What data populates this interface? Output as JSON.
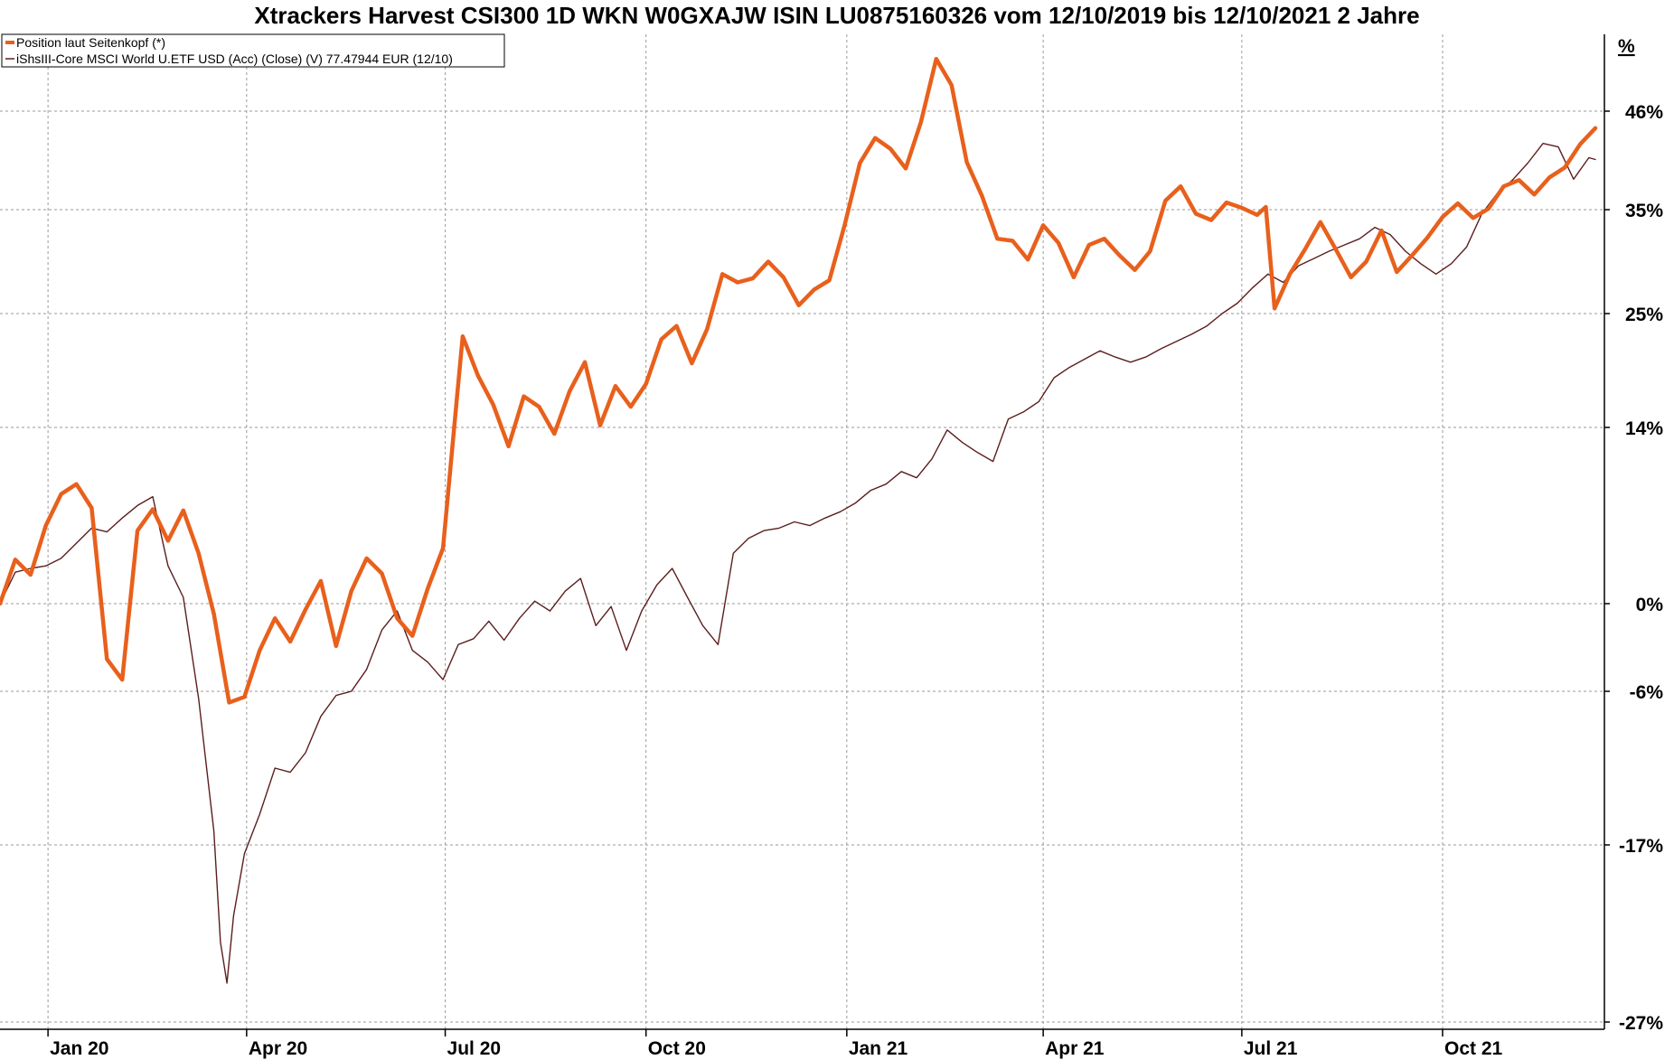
{
  "chart_data": {
    "type": "line",
    "title": "Xtrackers Harvest CSI300 1D WKN W0GXAJW ISIN LU0875160326 vom 12/10/2019 bis 12/10/2021 2 Jahre",
    "xlabel": "",
    "ylabel": "",
    "unit_label": "%",
    "y_ticks": [
      {
        "value": 46,
        "label": "46%"
      },
      {
        "value": 35,
        "label": "35%"
      },
      {
        "value": 25,
        "label": "25%"
      },
      {
        "value": 14,
        "label": "14%"
      },
      {
        "value": 0,
        "label": "0%"
      },
      {
        "value": -6,
        "label": "-6%"
      },
      {
        "value": -17,
        "label": "-17%"
      },
      {
        "value": -27,
        "label": "-27%"
      }
    ],
    "x_ticks": [
      {
        "date": "2020-01-01",
        "label": "Jan 20"
      },
      {
        "date": "2020-04-01",
        "label": "Apr 20"
      },
      {
        "date": "2020-07-01",
        "label": "Jul 20"
      },
      {
        "date": "2020-10-01",
        "label": "Oct 20"
      },
      {
        "date": "2021-01-01",
        "label": "Jan 21"
      },
      {
        "date": "2021-04-01",
        "label": "Apr 21"
      },
      {
        "date": "2021-07-01",
        "label": "Jul 21"
      },
      {
        "date": "2021-10-01",
        "label": "Oct 21"
      }
    ],
    "x_range": [
      "2019-12-10",
      "2021-12-10"
    ],
    "y_range_plotted": [
      -27,
      56
    ],
    "grid": true,
    "legend_position": "top-left",
    "series": [
      {
        "name": "Position laut Seitenkopf (*)",
        "color": "#e8601c",
        "points": [
          [
            "2019-12-10",
            0.0
          ],
          [
            "2019-12-17",
            3.5
          ],
          [
            "2019-12-24",
            2.3
          ],
          [
            "2019-12-31",
            6.2
          ],
          [
            "2020-01-07",
            8.7
          ],
          [
            "2020-01-14",
            9.5
          ],
          [
            "2020-01-21",
            7.6
          ],
          [
            "2020-01-28",
            -3.8
          ],
          [
            "2020-02-04",
            -5.2
          ],
          [
            "2020-02-11",
            5.8
          ],
          [
            "2020-02-18",
            7.5
          ],
          [
            "2020-02-25",
            5.0
          ],
          [
            "2020-03-03",
            7.4
          ],
          [
            "2020-03-10",
            4.0
          ],
          [
            "2020-03-17",
            -0.7
          ],
          [
            "2020-03-24",
            -6.8
          ],
          [
            "2020-03-31",
            -6.4
          ],
          [
            "2020-04-07",
            -3.2
          ],
          [
            "2020-04-14",
            -1.0
          ],
          [
            "2020-04-21",
            -2.6
          ],
          [
            "2020-04-28",
            -0.4
          ],
          [
            "2020-05-05",
            1.8
          ],
          [
            "2020-05-12",
            -2.9
          ],
          [
            "2020-05-19",
            1.0
          ],
          [
            "2020-05-26",
            3.6
          ],
          [
            "2020-06-02",
            2.4
          ],
          [
            "2020-06-09",
            -1.0
          ],
          [
            "2020-06-16",
            -2.2
          ],
          [
            "2020-06-23",
            1.2
          ],
          [
            "2020-06-30",
            4.4
          ],
          [
            "2020-07-06",
            16.0
          ],
          [
            "2020-07-09",
            22.8
          ],
          [
            "2020-07-16",
            19.0
          ],
          [
            "2020-07-23",
            16.2
          ],
          [
            "2020-07-30",
            12.5
          ],
          [
            "2020-08-06",
            17.0
          ],
          [
            "2020-08-13",
            16.0
          ],
          [
            "2020-08-20",
            13.5
          ],
          [
            "2020-08-27",
            17.5
          ],
          [
            "2020-09-03",
            20.3
          ],
          [
            "2020-09-10",
            14.2
          ],
          [
            "2020-09-17",
            18.0
          ],
          [
            "2020-09-24",
            16.0
          ],
          [
            "2020-10-01",
            18.2
          ],
          [
            "2020-10-08",
            22.5
          ],
          [
            "2020-10-15",
            23.8
          ],
          [
            "2020-10-22",
            20.2
          ],
          [
            "2020-10-29",
            23.5
          ],
          [
            "2020-11-05",
            28.8
          ],
          [
            "2020-11-12",
            28.0
          ],
          [
            "2020-11-19",
            28.4
          ],
          [
            "2020-11-26",
            30.0
          ],
          [
            "2020-12-03",
            28.5
          ],
          [
            "2020-12-10",
            25.8
          ],
          [
            "2020-12-17",
            27.3
          ],
          [
            "2020-12-24",
            28.2
          ],
          [
            "2020-12-31",
            33.5
          ],
          [
            "2021-01-07",
            40.2
          ],
          [
            "2021-01-14",
            43.0
          ],
          [
            "2021-01-21",
            41.8
          ],
          [
            "2021-01-28",
            39.6
          ],
          [
            "2021-02-04",
            44.8
          ],
          [
            "2021-02-11",
            52.8
          ],
          [
            "2021-02-18",
            49.4
          ],
          [
            "2021-02-25",
            40.3
          ],
          [
            "2021-03-04",
            36.5
          ],
          [
            "2021-03-11",
            32.2
          ],
          [
            "2021-03-18",
            32.0
          ],
          [
            "2021-03-25",
            30.2
          ],
          [
            "2021-04-01",
            33.5
          ],
          [
            "2021-04-08",
            31.8
          ],
          [
            "2021-04-15",
            28.5
          ],
          [
            "2021-04-22",
            31.6
          ],
          [
            "2021-04-29",
            32.2
          ],
          [
            "2021-05-06",
            30.6
          ],
          [
            "2021-05-13",
            29.2
          ],
          [
            "2021-05-20",
            31.0
          ],
          [
            "2021-05-27",
            36.0
          ],
          [
            "2021-06-03",
            37.6
          ],
          [
            "2021-06-10",
            34.6
          ],
          [
            "2021-06-17",
            34.0
          ],
          [
            "2021-06-24",
            35.8
          ],
          [
            "2021-07-01",
            35.2
          ],
          [
            "2021-07-08",
            34.5
          ],
          [
            "2021-07-12",
            35.3
          ],
          [
            "2021-07-16",
            25.5
          ],
          [
            "2021-07-23",
            28.8
          ],
          [
            "2021-07-30",
            31.2
          ],
          [
            "2021-08-06",
            33.8
          ],
          [
            "2021-08-13",
            31.2
          ],
          [
            "2021-08-20",
            28.5
          ],
          [
            "2021-08-27",
            30.0
          ],
          [
            "2021-09-03",
            33.0
          ],
          [
            "2021-09-10",
            29.0
          ],
          [
            "2021-09-17",
            30.6
          ],
          [
            "2021-09-24",
            32.3
          ],
          [
            "2021-10-01",
            34.3
          ],
          [
            "2021-10-08",
            35.7
          ],
          [
            "2021-10-15",
            34.2
          ],
          [
            "2021-10-22",
            35.1
          ],
          [
            "2021-10-29",
            37.6
          ],
          [
            "2021-11-05",
            38.3
          ],
          [
            "2021-11-12",
            36.7
          ],
          [
            "2021-11-19",
            38.6
          ],
          [
            "2021-11-26",
            39.7
          ],
          [
            "2021-12-03",
            42.3
          ],
          [
            "2021-12-10",
            44.1
          ]
        ]
      },
      {
        "name": "iShsIII-Core MSCI World U.ETF USD (Acc) (Close) (V) 77.47944 EUR (12/10)",
        "color": "#5c1e1e",
        "points": [
          [
            "2019-12-10",
            0.0
          ],
          [
            "2019-12-17",
            2.5
          ],
          [
            "2019-12-24",
            2.8
          ],
          [
            "2019-12-31",
            3.0
          ],
          [
            "2020-01-07",
            3.6
          ],
          [
            "2020-01-14",
            4.8
          ],
          [
            "2020-01-21",
            6.0
          ],
          [
            "2020-01-28",
            5.7
          ],
          [
            "2020-02-04",
            6.8
          ],
          [
            "2020-02-11",
            7.8
          ],
          [
            "2020-02-18",
            8.5
          ],
          [
            "2020-02-25",
            3.0
          ],
          [
            "2020-03-03",
            0.5
          ],
          [
            "2020-03-10",
            -6.5
          ],
          [
            "2020-03-17",
            -16.0
          ],
          [
            "2020-03-20",
            -22.5
          ],
          [
            "2020-03-23",
            -24.8
          ],
          [
            "2020-03-26",
            -21.0
          ],
          [
            "2020-03-31",
            -17.5
          ],
          [
            "2020-04-07",
            -14.8
          ],
          [
            "2020-04-14",
            -11.5
          ],
          [
            "2020-04-21",
            -11.8
          ],
          [
            "2020-04-28",
            -10.4
          ],
          [
            "2020-05-05",
            -7.8
          ],
          [
            "2020-05-12",
            -6.3
          ],
          [
            "2020-05-19",
            -6.0
          ],
          [
            "2020-05-26",
            -4.5
          ],
          [
            "2020-06-02",
            -1.8
          ],
          [
            "2020-06-09",
            -0.5
          ],
          [
            "2020-06-16",
            -3.2
          ],
          [
            "2020-06-23",
            -4.0
          ],
          [
            "2020-06-30",
            -5.2
          ],
          [
            "2020-07-07",
            -2.8
          ],
          [
            "2020-07-14",
            -2.4
          ],
          [
            "2020-07-21",
            -1.2
          ],
          [
            "2020-07-28",
            -2.5
          ],
          [
            "2020-08-04",
            -1.0
          ],
          [
            "2020-08-11",
            0.2
          ],
          [
            "2020-08-18",
            -0.5
          ],
          [
            "2020-08-25",
            1.0
          ],
          [
            "2020-09-01",
            2.0
          ],
          [
            "2020-09-08",
            -1.5
          ],
          [
            "2020-09-15",
            -0.2
          ],
          [
            "2020-09-22",
            -3.2
          ],
          [
            "2020-09-29",
            -0.5
          ],
          [
            "2020-10-06",
            1.5
          ],
          [
            "2020-10-13",
            2.8
          ],
          [
            "2020-10-20",
            0.5
          ],
          [
            "2020-10-27",
            -1.5
          ],
          [
            "2020-11-03",
            -2.8
          ],
          [
            "2020-11-10",
            4.0
          ],
          [
            "2020-11-17",
            5.2
          ],
          [
            "2020-11-24",
            5.8
          ],
          [
            "2020-12-01",
            6.0
          ],
          [
            "2020-12-08",
            6.5
          ],
          [
            "2020-12-15",
            6.2
          ],
          [
            "2020-12-22",
            6.8
          ],
          [
            "2020-12-29",
            7.3
          ],
          [
            "2021-01-05",
            8.0
          ],
          [
            "2021-01-12",
            9.0
          ],
          [
            "2021-01-19",
            9.5
          ],
          [
            "2021-01-26",
            10.5
          ],
          [
            "2021-02-02",
            10.0
          ],
          [
            "2021-02-09",
            11.5
          ],
          [
            "2021-02-16",
            13.8
          ],
          [
            "2021-02-23",
            12.8
          ],
          [
            "2021-03-02",
            12.0
          ],
          [
            "2021-03-09",
            11.3
          ],
          [
            "2021-03-16",
            14.8
          ],
          [
            "2021-03-23",
            15.5
          ],
          [
            "2021-03-30",
            16.5
          ],
          [
            "2021-04-06",
            18.8
          ],
          [
            "2021-04-13",
            19.8
          ],
          [
            "2021-04-20",
            20.6
          ],
          [
            "2021-04-27",
            21.4
          ],
          [
            "2021-05-04",
            20.8
          ],
          [
            "2021-05-11",
            20.3
          ],
          [
            "2021-05-18",
            20.8
          ],
          [
            "2021-05-25",
            21.6
          ],
          [
            "2021-06-01",
            22.3
          ],
          [
            "2021-06-08",
            23.0
          ],
          [
            "2021-06-15",
            23.8
          ],
          [
            "2021-06-22",
            25.0
          ],
          [
            "2021-06-29",
            26.0
          ],
          [
            "2021-07-06",
            27.5
          ],
          [
            "2021-07-13",
            28.8
          ],
          [
            "2021-07-20",
            28.0
          ],
          [
            "2021-07-27",
            29.6
          ],
          [
            "2021-08-03",
            30.3
          ],
          [
            "2021-08-10",
            31.0
          ],
          [
            "2021-08-17",
            31.6
          ],
          [
            "2021-08-24",
            32.2
          ],
          [
            "2021-08-31",
            33.3
          ],
          [
            "2021-09-07",
            32.6
          ],
          [
            "2021-09-14",
            31.0
          ],
          [
            "2021-09-21",
            29.8
          ],
          [
            "2021-09-28",
            28.8
          ],
          [
            "2021-10-05",
            29.8
          ],
          [
            "2021-10-12",
            31.4
          ],
          [
            "2021-10-19",
            34.6
          ],
          [
            "2021-10-26",
            36.8
          ],
          [
            "2021-11-02",
            38.3
          ],
          [
            "2021-11-09",
            40.2
          ],
          [
            "2021-11-16",
            42.4
          ],
          [
            "2021-11-23",
            42.0
          ],
          [
            "2021-11-30",
            38.4
          ],
          [
            "2021-12-07",
            40.8
          ],
          [
            "2021-12-10",
            40.6
          ]
        ]
      }
    ]
  }
}
